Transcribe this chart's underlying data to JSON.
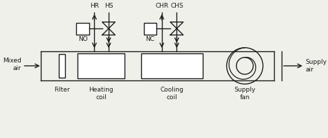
{
  "bg_color": "#f0f0eb",
  "line_color": "#1a1a1a",
  "labels": {
    "mixed_air": "Mixed\nair",
    "supply_air": "Supply\nair",
    "filter": "Filter",
    "heating_coil": "Heating\ncoil",
    "cooling_coil": "Cooling\ncoil",
    "supply_fan": "Supply\nfan",
    "HR": "HR",
    "HS": "HS",
    "CHR": "CHR",
    "CHS": "CHS",
    "NO": "NO",
    "NC": "NC"
  },
  "fontsize": 6.5
}
